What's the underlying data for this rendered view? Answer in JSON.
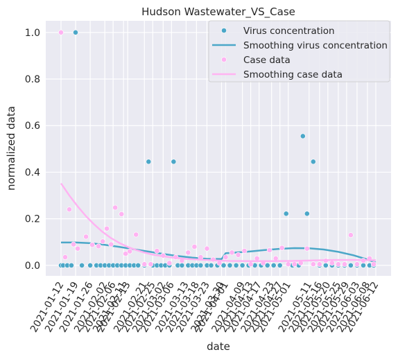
{
  "chart_data": {
    "type": "scatter",
    "title": "Hudson Wastewater_VS_Case",
    "xlabel": "date",
    "ylabel": "normalized data",
    "ylim": [
      -0.045,
      1.05
    ],
    "yticks": [
      "0.0",
      "0.2",
      "0.4",
      "0.6",
      "0.8",
      "1.0"
    ],
    "grid": true,
    "legend_position": "top-right",
    "categories": [
      "2021-01-12",
      "2021-01-19",
      "2021-01-26",
      "2021-02-02",
      "2021-02-06",
      "2021-02-11",
      "2021-02-13",
      "2021-02-21",
      "2021-02-25",
      "2021-03-02",
      "2021-03-06",
      "2021-03-13",
      "2021-03-18",
      "2021-03-23",
      "2021-03-30",
      "2021-04-01",
      "2021-04-09",
      "2021-04-13",
      "2021-04-17",
      "2021-04-23",
      "2021-04-27",
      "2021-05-01",
      "2021-05-11",
      "2021-05-16",
      "2021-05-20",
      "2021-05-25",
      "2021-05-29",
      "2021-06-03",
      "2021-06-08",
      "2021-06-12"
    ],
    "series": [
      {
        "name": "Virus concentration",
        "style": "scatter",
        "color": "#4ba7c8",
        "x": [
          "2021-01-12",
          "2021-01-13",
          "2021-01-15",
          "2021-01-17",
          "2021-01-19",
          "2021-01-22",
          "2021-01-26",
          "2021-01-29",
          "2021-01-31",
          "2021-02-02",
          "2021-02-04",
          "2021-02-06",
          "2021-02-08",
          "2021-02-10",
          "2021-02-12",
          "2021-02-14",
          "2021-02-16",
          "2021-02-18",
          "2021-02-21",
          "2021-02-23",
          "2021-02-25",
          "2021-02-27",
          "2021-03-01",
          "2021-03-03",
          "2021-03-05",
          "2021-03-07",
          "2021-03-09",
          "2021-03-11",
          "2021-03-14",
          "2021-03-16",
          "2021-03-18",
          "2021-03-20",
          "2021-03-23",
          "2021-03-25",
          "2021-03-28",
          "2021-03-31",
          "2021-04-03",
          "2021-04-06",
          "2021-04-09",
          "2021-04-12",
          "2021-04-15",
          "2021-04-18",
          "2021-04-21",
          "2021-04-24",
          "2021-04-27",
          "2021-04-30",
          "2021-05-03",
          "2021-05-06",
          "2021-05-08",
          "2021-05-10",
          "2021-05-13",
          "2021-05-16",
          "2021-05-19",
          "2021-05-22",
          "2021-05-25",
          "2021-05-28",
          "2021-05-31",
          "2021-06-03",
          "2021-06-06",
          "2021-06-09",
          "2021-06-11"
        ],
        "values": [
          0,
          0,
          0,
          0,
          1.0,
          0,
          0,
          0,
          0,
          0,
          0,
          0,
          0,
          0,
          0,
          0,
          0,
          0,
          0,
          0.445,
          0,
          0,
          0,
          0,
          0,
          0.445,
          0,
          0,
          0,
          0,
          0,
          0,
          0,
          0,
          0,
          0,
          0,
          0,
          0,
          0,
          0,
          0,
          0,
          0,
          0,
          0.222,
          0,
          0,
          0.555,
          0.222,
          0.445,
          0,
          0,
          0,
          0,
          0,
          0,
          0,
          0,
          0,
          0
        ]
      },
      {
        "name": "Smoothing virus concentration",
        "style": "line",
        "color": "#4ba7c8",
        "x": [
          "2021-01-12",
          "2021-01-19",
          "2021-01-26",
          "2021-02-02",
          "2021-02-09",
          "2021-02-16",
          "2021-02-23",
          "2021-03-02",
          "2021-03-09",
          "2021-03-16",
          "2021-03-23",
          "2021-03-30",
          "2021-04-01",
          "2021-04-06",
          "2021-04-13",
          "2021-04-20",
          "2021-04-27",
          "2021-05-04",
          "2021-05-11",
          "2021-05-18",
          "2021-05-25",
          "2021-06-01",
          "2021-06-08",
          "2021-06-12"
        ],
        "values": [
          0.098,
          0.098,
          0.095,
          0.088,
          0.079,
          0.069,
          0.059,
          0.049,
          0.04,
          0.033,
          0.028,
          0.027,
          0.052,
          0.055,
          0.06,
          0.066,
          0.071,
          0.074,
          0.073,
          0.068,
          0.058,
          0.044,
          0.025,
          0.012
        ]
      },
      {
        "name": "Case data",
        "style": "scatter",
        "color": "#ffb3f2",
        "x": [
          "2021-01-12",
          "2021-01-14",
          "2021-01-16",
          "2021-01-18",
          "2021-01-20",
          "2021-01-24",
          "2021-01-27",
          "2021-01-30",
          "2021-02-01",
          "2021-02-03",
          "2021-02-05",
          "2021-02-07",
          "2021-02-10",
          "2021-02-12",
          "2021-02-14",
          "2021-02-17",
          "2021-02-21",
          "2021-02-24",
          "2021-02-27",
          "2021-03-02",
          "2021-03-05",
          "2021-03-08",
          "2021-03-11",
          "2021-03-14",
          "2021-03-17",
          "2021-03-20",
          "2021-03-23",
          "2021-03-26",
          "2021-03-29",
          "2021-04-01",
          "2021-04-04",
          "2021-04-07",
          "2021-04-10",
          "2021-04-13",
          "2021-04-16",
          "2021-04-19",
          "2021-04-22",
          "2021-04-25",
          "2021-04-28",
          "2021-05-01",
          "2021-05-04",
          "2021-05-07",
          "2021-05-10",
          "2021-05-13",
          "2021-05-16",
          "2021-05-19",
          "2021-05-22",
          "2021-05-25",
          "2021-05-28",
          "2021-05-31",
          "2021-06-03",
          "2021-06-06",
          "2021-06-09",
          "2021-06-11"
        ],
        "values": [
          1.0,
          0.035,
          0.24,
          0.09,
          0.072,
          0.123,
          0.088,
          0.082,
          0.103,
          0.158,
          0.09,
          0.248,
          0.22,
          0.05,
          0.06,
          0.132,
          0.005,
          0.005,
          0.062,
          0.042,
          0.01,
          0.035,
          0.02,
          0.055,
          0.08,
          0.035,
          0.072,
          0.025,
          0.01,
          0.035,
          0.055,
          0.045,
          0.062,
          0.005,
          0.03,
          0.01,
          0.065,
          0.03,
          0.075,
          0.005,
          0.005,
          0.01,
          0.072,
          0.005,
          0.005,
          0.02,
          0.01,
          0.005,
          0.005,
          0.13,
          0.005,
          0.02,
          0.03,
          0.005
        ]
      },
      {
        "name": "Smoothing case data",
        "style": "line",
        "color": "#ffb3f2",
        "x": [
          "2021-01-12",
          "2021-01-16",
          "2021-01-20",
          "2021-01-24",
          "2021-01-28",
          "2021-02-01",
          "2021-02-05",
          "2021-02-09",
          "2021-02-13",
          "2021-02-17",
          "2021-02-21",
          "2021-02-25",
          "2021-03-01",
          "2021-03-06",
          "2021-03-13",
          "2021-03-20",
          "2021-03-27",
          "2021-04-03",
          "2021-04-13",
          "2021-04-23",
          "2021-05-03",
          "2021-05-13",
          "2021-05-23",
          "2021-06-02",
          "2021-06-12"
        ],
        "values": [
          0.352,
          0.3,
          0.253,
          0.211,
          0.175,
          0.143,
          0.117,
          0.096,
          0.079,
          0.066,
          0.055,
          0.046,
          0.04,
          0.034,
          0.028,
          0.024,
          0.021,
          0.019,
          0.018,
          0.018,
          0.019,
          0.021,
          0.023,
          0.023,
          0.022
        ]
      }
    ]
  }
}
